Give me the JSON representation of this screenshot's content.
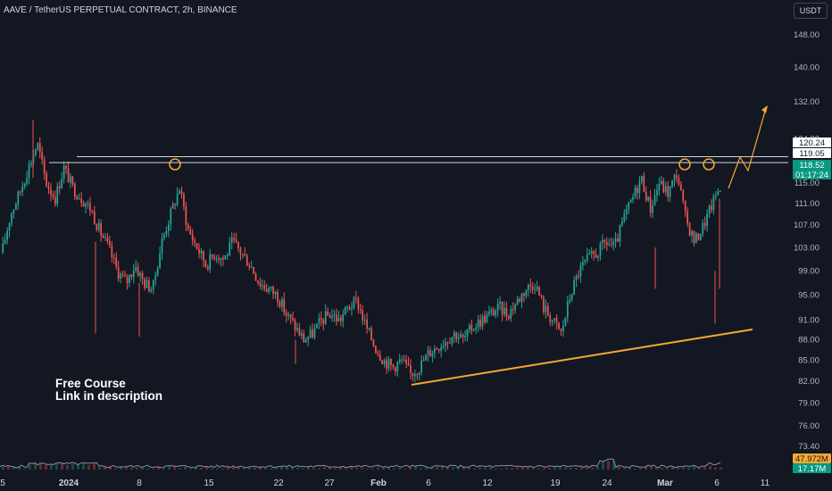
{
  "header": {
    "symbol_title": "AAVE / TetherUS PERPETUAL CONTRACT, 2h, BINANCE",
    "currency": "USDT"
  },
  "annotation": {
    "line1": "Free Course",
    "line2": "Link in description"
  },
  "colors": {
    "background": "#131722",
    "up_candle": "#26a69a",
    "down_candle": "#ef5350",
    "trendline": "#f7a831",
    "level_line": "#d1d4dc",
    "projection": "#f7a831",
    "volume_line": "#8a8f99"
  },
  "chart_data": {
    "type": "candlestick",
    "y_axis": {
      "scale": "log",
      "ticks": [
        "148.00",
        "140.00",
        "132.00",
        "115.00",
        "111.00",
        "107.00",
        "103.00",
        "99.00",
        "95.00",
        "91.00",
        "88.00",
        "85.00",
        "82.00",
        "79.00",
        "76.00",
        "73.40"
      ],
      "partially_hidden_tick": "124.00",
      "ylim": [
        71.5,
        156
      ]
    },
    "x_axis": {
      "ticks": [
        "5",
        "2024",
        "8",
        "15",
        "22",
        "27",
        "Feb",
        "6",
        "12",
        "19",
        "24",
        "Mar",
        "6",
        "11"
      ],
      "bold_ticks": [
        "2024",
        "Feb",
        "Mar"
      ]
    },
    "price_labels": [
      {
        "text": "120.24",
        "value": 120.24,
        "style": "white"
      },
      {
        "text": "119.05",
        "value": 119.05,
        "style": "white"
      },
      {
        "text": "118.52",
        "value": 118.52,
        "style": "teal"
      },
      {
        "text": "01:17:24",
        "value": null,
        "style": "teal"
      }
    ],
    "volume_labels": [
      {
        "text": "47.972M",
        "style": "orange"
      },
      {
        "text": "17.17M",
        "style": "teal"
      }
    ],
    "horizontal_levels": [
      120.24,
      119.05
    ],
    "price_path": [
      [
        "5",
        102
      ],
      [
        "2024",
        109
      ],
      [
        "2024",
        113
      ],
      [
        "2024",
        118
      ],
      [
        "2024",
        123
      ],
      [
        "2024",
        115
      ],
      [
        "2024",
        112
      ],
      [
        "2024",
        118
      ],
      [
        "2024",
        114
      ],
      [
        "2024",
        112
      ],
      [
        "8",
        110
      ],
      [
        "8",
        106
      ],
      [
        "8",
        103
      ],
      [
        "8",
        99
      ],
      [
        "8",
        97
      ],
      [
        "8",
        100
      ],
      [
        "8",
        97
      ],
      [
        "8",
        96
      ],
      [
        "15",
        104
      ],
      [
        "15",
        109
      ],
      [
        "15",
        114
      ],
      [
        "15",
        106
      ],
      [
        "15",
        103
      ],
      [
        "15",
        100
      ],
      [
        "15",
        102
      ],
      [
        "15",
        101
      ],
      [
        "15",
        104
      ],
      [
        "15",
        102
      ],
      [
        "15",
        100
      ],
      [
        "15",
        97
      ],
      [
        "22",
        96
      ],
      [
        "22",
        95
      ],
      [
        "22",
        92
      ],
      [
        "22",
        90
      ],
      [
        "22",
        88
      ],
      [
        "27",
        89
      ],
      [
        "27",
        91
      ],
      [
        "27",
        92
      ],
      [
        "27",
        91
      ],
      [
        "27",
        93
      ],
      [
        "27",
        94
      ],
      [
        "Feb",
        90
      ],
      [
        "Feb",
        87
      ],
      [
        "Feb",
        85
      ],
      [
        "6",
        84
      ],
      [
        "6",
        85
      ],
      [
        "6",
        83
      ],
      [
        "6",
        84
      ],
      [
        "12",
        86
      ],
      [
        "12",
        87
      ],
      [
        "12",
        88
      ],
      [
        "12",
        89
      ],
      [
        "12",
        88
      ],
      [
        "12",
        90
      ],
      [
        "19",
        91
      ],
      [
        "19",
        92
      ],
      [
        "19",
        93
      ],
      [
        "19",
        92
      ],
      [
        "19",
        94
      ],
      [
        "19",
        96
      ],
      [
        "19",
        97
      ],
      [
        "19",
        93
      ],
      [
        "24",
        91
      ],
      [
        "24",
        89
      ],
      [
        "24",
        95
      ],
      [
        "24",
        99
      ],
      [
        "24",
        101
      ],
      [
        "24",
        102
      ],
      [
        "24",
        104
      ],
      [
        "24",
        103
      ],
      [
        "24",
        108
      ],
      [
        "Mar",
        112
      ],
      [
        "Mar",
        116
      ],
      [
        "Mar",
        110
      ],
      [
        "Mar",
        115
      ],
      [
        "6",
        113
      ],
      [
        "6",
        117
      ],
      [
        "6",
        108
      ],
      [
        "6",
        104
      ],
      [
        "6",
        107
      ],
      [
        "6",
        111
      ],
      [
        "6",
        115
      ]
    ],
    "price_path_note": "approximate closing prices read from the chart, in x-tick order"
  }
}
